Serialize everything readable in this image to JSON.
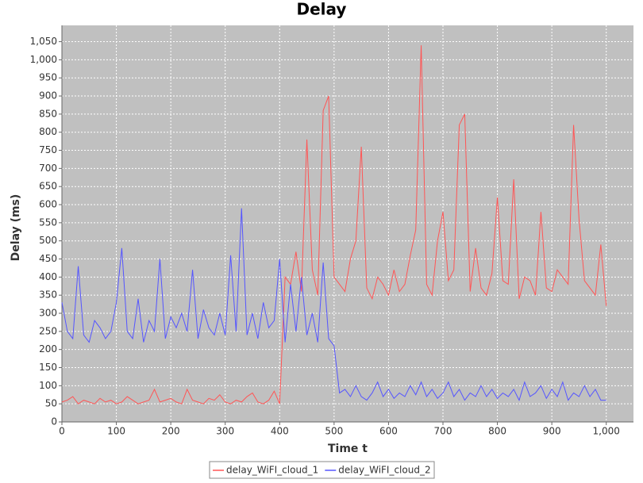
{
  "chart_data": {
    "type": "line",
    "title": "Delay",
    "x_label": "Time t",
    "y_label": "Delay (ms)",
    "x": [
      0,
      10,
      20,
      30,
      40,
      50,
      60,
      70,
      80,
      90,
      100,
      110,
      120,
      130,
      140,
      150,
      160,
      170,
      180,
      190,
      200,
      210,
      220,
      230,
      240,
      250,
      260,
      270,
      280,
      290,
      300,
      310,
      320,
      330,
      340,
      350,
      360,
      370,
      380,
      390,
      400,
      410,
      420,
      430,
      440,
      450,
      460,
      470,
      480,
      490,
      500,
      510,
      520,
      530,
      540,
      550,
      560,
      570,
      580,
      590,
      600,
      610,
      620,
      630,
      640,
      650,
      660,
      670,
      680,
      690,
      700,
      710,
      720,
      730,
      740,
      750,
      760,
      770,
      780,
      790,
      800,
      810,
      820,
      830,
      840,
      850,
      860,
      870,
      880,
      890,
      900,
      910,
      920,
      930,
      940,
      950,
      960,
      970,
      980,
      990,
      1000
    ],
    "series": [
      {
        "name": "delay_WiFI_cloud_1",
        "color": "#ff5555",
        "values": [
          55,
          60,
          70,
          50,
          60,
          55,
          50,
          65,
          55,
          60,
          50,
          55,
          70,
          60,
          50,
          55,
          60,
          90,
          55,
          60,
          65,
          55,
          50,
          90,
          60,
          55,
          50,
          65,
          60,
          75,
          55,
          50,
          60,
          55,
          70,
          80,
          55,
          50,
          60,
          85,
          50,
          400,
          380,
          470,
          360,
          780,
          420,
          350,
          860,
          900,
          400,
          380,
          360,
          450,
          500,
          760,
          370,
          340,
          400,
          380,
          350,
          420,
          360,
          380,
          460,
          530,
          1040,
          380,
          350,
          500,
          580,
          390,
          420,
          820,
          850,
          360,
          480,
          370,
          350,
          410,
          620,
          390,
          380,
          670,
          340,
          400,
          390,
          350,
          580,
          370,
          360,
          420,
          400,
          380,
          820,
          560,
          390,
          370,
          350,
          490,
          320
        ]
      },
      {
        "name": "delay_WiFI_cloud_2",
        "color": "#5555ff",
        "values": [
          330,
          250,
          230,
          430,
          240,
          220,
          280,
          260,
          230,
          250,
          330,
          480,
          250,
          230,
          340,
          220,
          280,
          250,
          450,
          230,
          290,
          260,
          300,
          250,
          420,
          230,
          310,
          260,
          240,
          300,
          240,
          460,
          250,
          590,
          240,
          300,
          230,
          330,
          260,
          280,
          450,
          220,
          380,
          250,
          400,
          240,
          300,
          220,
          440,
          230,
          210,
          80,
          90,
          70,
          100,
          70,
          60,
          80,
          110,
          70,
          90,
          65,
          80,
          70,
          100,
          75,
          110,
          70,
          90,
          65,
          80,
          110,
          70,
          90,
          60,
          80,
          70,
          100,
          70,
          90,
          65,
          80,
          70,
          90,
          60,
          110,
          70,
          80,
          100,
          65,
          90,
          70,
          110,
          60,
          80,
          70,
          100,
          70,
          90,
          60,
          60
        ]
      }
    ],
    "xlim": [
      0,
      1050
    ],
    "xticks": [
      0,
      100,
      200,
      300,
      400,
      500,
      600,
      700,
      800,
      900,
      {
        "value": 1000,
        "label": "1,000"
      }
    ],
    "ylim": [
      0,
      1095
    ],
    "yticks": [
      0,
      50,
      100,
      150,
      200,
      250,
      300,
      350,
      400,
      450,
      500,
      550,
      600,
      650,
      700,
      750,
      800,
      850,
      900,
      950,
      {
        "value": 1000,
        "label": "1,000"
      },
      {
        "value": 1050,
        "label": "1,050"
      }
    ],
    "grid": true
  }
}
